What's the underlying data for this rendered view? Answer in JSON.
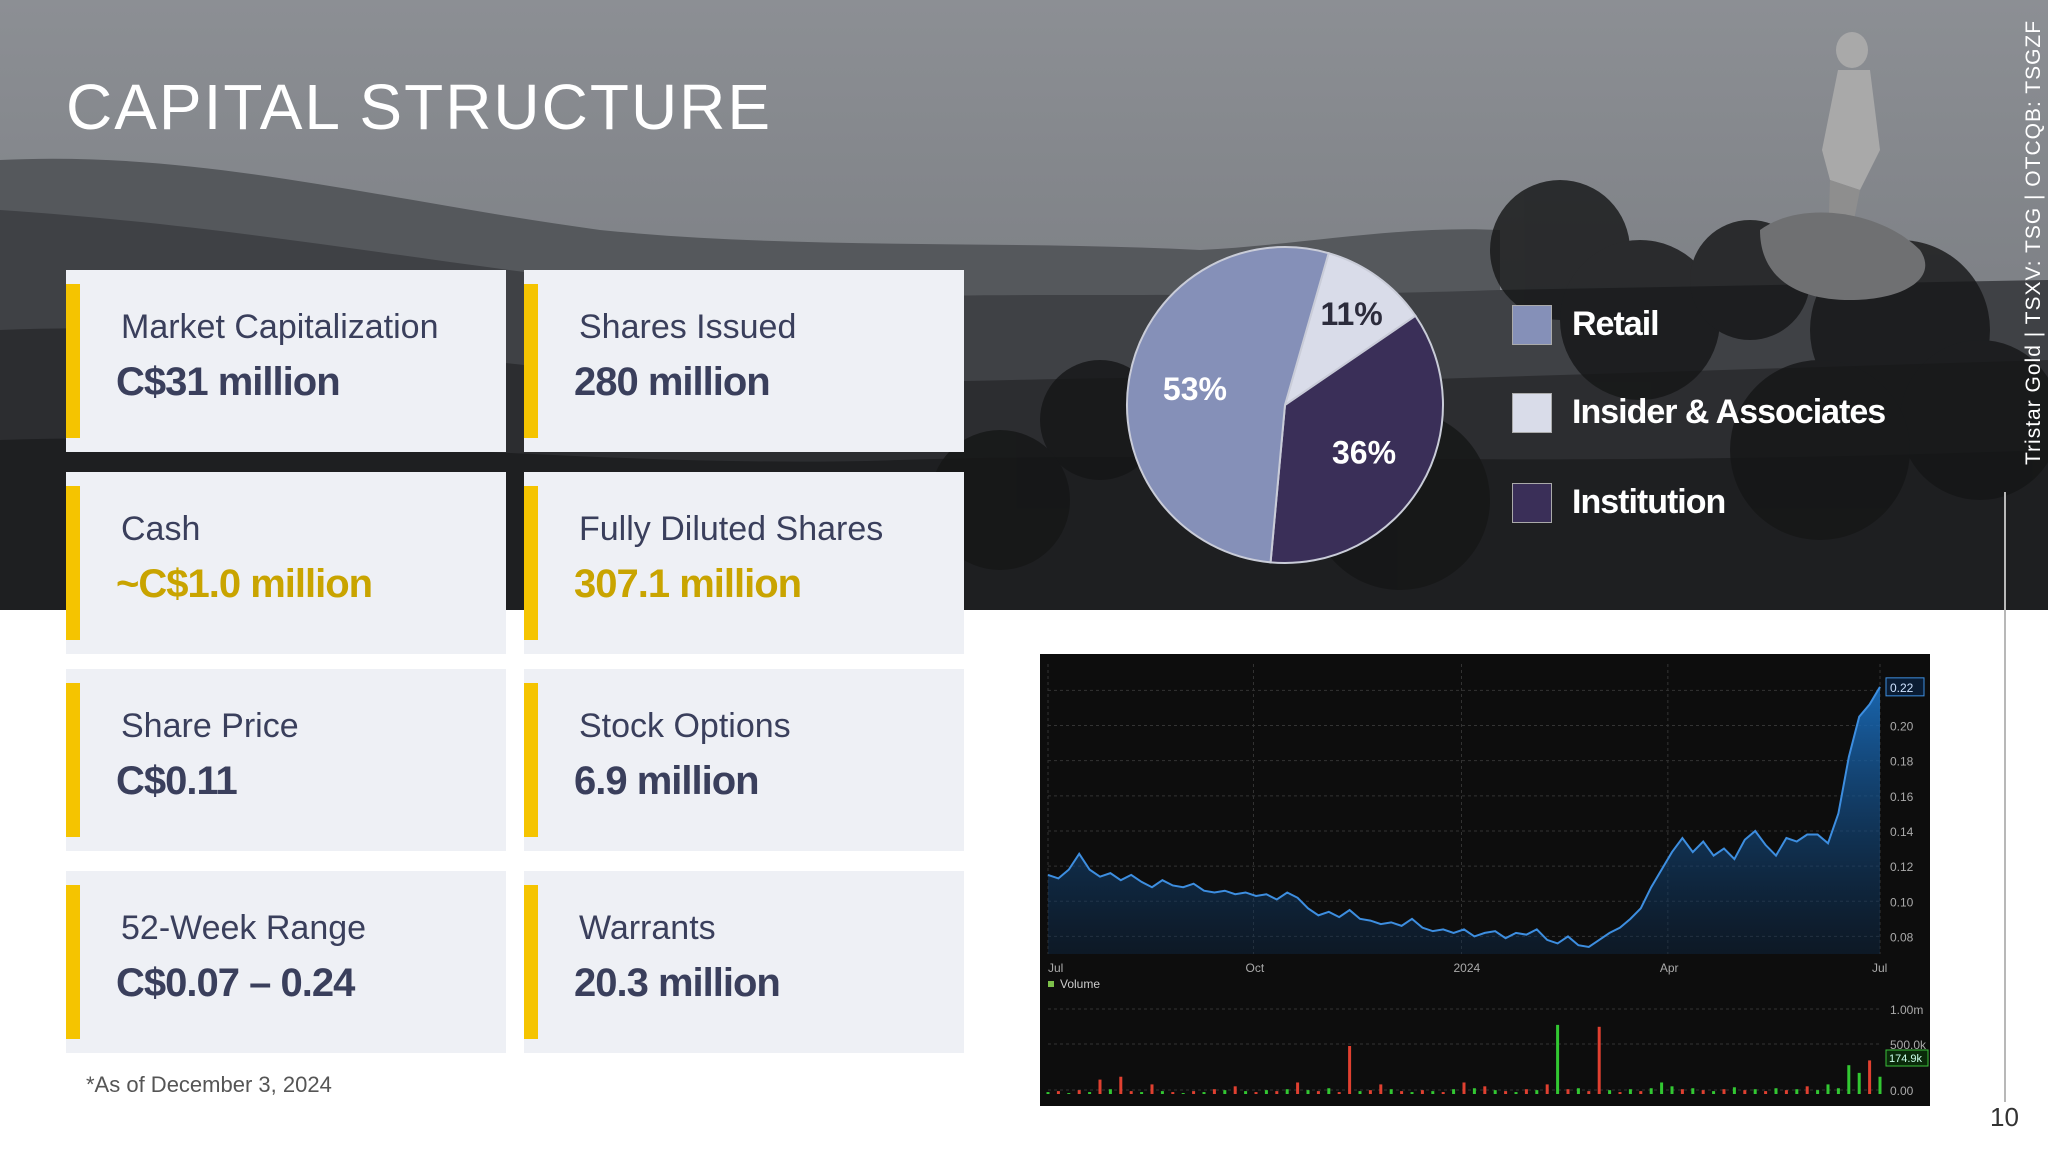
{
  "title": "CAPITAL STRUCTURE",
  "side_text": "Tristar Gold | TSXV: TSG | OTCQB: TSGZF",
  "page_number": "10",
  "footnote": "*As of December 3, 2024",
  "cards": [
    {
      "label": "Market Capitalization",
      "value": "C$31 million",
      "highlight": false
    },
    {
      "label": "Shares Issued",
      "value": "280 million",
      "highlight": false
    },
    {
      "label": "Cash",
      "value": "~C$1.0 million",
      "highlight": true
    },
    {
      "label": "Fully Diluted Shares",
      "value": "307.1 million",
      "highlight": true
    },
    {
      "label": "Share Price",
      "value": "C$0.11",
      "highlight": false
    },
    {
      "label": "Stock Options",
      "value": "6.9 million",
      "highlight": false
    },
    {
      "label": "52-Week Range",
      "value": "C$0.07 – 0.24",
      "highlight": false
    },
    {
      "label": "Warrants",
      "value": "20.3 million",
      "highlight": false
    }
  ],
  "colors": {
    "accent": "#f5c400",
    "card_bg": "#eef0f5",
    "text": "#3a3f5c",
    "gold_text": "#c9a400"
  },
  "chart_data": [
    {
      "type": "pie",
      "slices": [
        {
          "name": "Retail",
          "value": 53,
          "label": "53%",
          "color": "#8590b8"
        },
        {
          "name": "Insider & Associates",
          "value": 11,
          "label": "11%",
          "color": "#d9dce9"
        },
        {
          "name": "Institution",
          "value": 36,
          "label": "36%",
          "color": "#3a2f58"
        }
      ],
      "legend_position": "right"
    },
    {
      "type": "area",
      "x_ticks": [
        "Jul",
        "Oct",
        "2024",
        "Apr",
        "Jul"
      ],
      "y_ticks": [
        "0.22",
        "0.20",
        "0.18",
        "0.16",
        "0.14",
        "0.12",
        "0.10",
        "0.08"
      ],
      "ylim": [
        0.07,
        0.235
      ],
      "last_value": "0.22",
      "price_series": [
        0.115,
        0.113,
        0.118,
        0.127,
        0.118,
        0.114,
        0.116,
        0.112,
        0.115,
        0.111,
        0.108,
        0.112,
        0.109,
        0.108,
        0.11,
        0.106,
        0.105,
        0.106,
        0.104,
        0.105,
        0.103,
        0.104,
        0.101,
        0.105,
        0.102,
        0.096,
        0.092,
        0.094,
        0.091,
        0.095,
        0.09,
        0.089,
        0.087,
        0.088,
        0.086,
        0.09,
        0.085,
        0.083,
        0.084,
        0.082,
        0.084,
        0.08,
        0.082,
        0.083,
        0.079,
        0.082,
        0.081,
        0.084,
        0.078,
        0.076,
        0.08,
        0.075,
        0.074,
        0.078,
        0.082,
        0.085,
        0.09,
        0.096,
        0.108,
        0.118,
        0.128,
        0.136,
        0.128,
        0.134,
        0.126,
        0.13,
        0.124,
        0.135,
        0.14,
        0.132,
        0.126,
        0.136,
        0.134,
        0.138,
        0.138,
        0.133,
        0.15,
        0.182,
        0.205,
        0.212,
        0.222
      ],
      "volume_label": "Volume",
      "volume_ticks": [
        "1.00m",
        "500.0k",
        "0.00"
      ],
      "volume_last": "174.9k",
      "volume_series": [
        0.02,
        0.03,
        0.01,
        0.04,
        0.02,
        0.15,
        0.05,
        0.18,
        0.03,
        0.02,
        0.1,
        0.03,
        0.02,
        0.01,
        0.03,
        0.02,
        0.05,
        0.04,
        0.08,
        0.03,
        0.02,
        0.04,
        0.03,
        0.05,
        0.12,
        0.04,
        0.03,
        0.06,
        0.02,
        0.5,
        0.03,
        0.04,
        0.1,
        0.05,
        0.03,
        0.02,
        0.04,
        0.03,
        0.02,
        0.05,
        0.12,
        0.06,
        0.08,
        0.04,
        0.03,
        0.02,
        0.05,
        0.04,
        0.1,
        0.72,
        0.05,
        0.06,
        0.03,
        0.7,
        0.04,
        0.02,
        0.05,
        0.03,
        0.06,
        0.12,
        0.08,
        0.05,
        0.06,
        0.04,
        0.03,
        0.05,
        0.07,
        0.04,
        0.05,
        0.03,
        0.06,
        0.04,
        0.05,
        0.08,
        0.04,
        0.1,
        0.06,
        0.3,
        0.22,
        0.35,
        0.18
      ],
      "volume_colors": [
        "g",
        "r",
        "g",
        "r",
        "g",
        "r",
        "g",
        "r",
        "r",
        "g",
        "r",
        "g",
        "r",
        "g",
        "r",
        "g",
        "r",
        "g",
        "r",
        "g",
        "r",
        "g",
        "r",
        "g",
        "r",
        "g",
        "r",
        "g",
        "r",
        "r",
        "g",
        "r",
        "r",
        "g",
        "r",
        "g",
        "r",
        "g",
        "r",
        "g",
        "r",
        "g",
        "r",
        "g",
        "r",
        "g",
        "r",
        "g",
        "r",
        "g",
        "r",
        "g",
        "r",
        "r",
        "g",
        "r",
        "g",
        "r",
        "g",
        "g",
        "g",
        "r",
        "g",
        "r",
        "g",
        "r",
        "g",
        "r",
        "g",
        "r",
        "g",
        "r",
        "g",
        "r",
        "g",
        "g",
        "g",
        "g",
        "g",
        "r",
        "g"
      ]
    }
  ]
}
